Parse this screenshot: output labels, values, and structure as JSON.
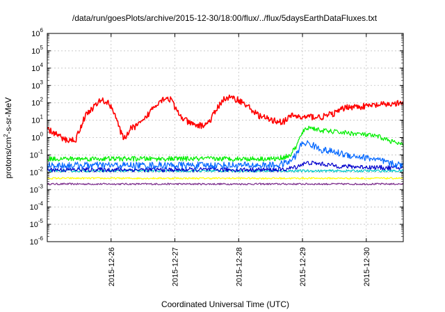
{
  "chart_data": {
    "type": "line",
    "title": "/data/run/goesPlots/archive/2015-12-30/18:00/flux/../flux/5daysEarthDataFluxes.txt",
    "xlabel": "Coordinated Universal Time (UTC)",
    "ylabel": "protons/cm²-s-sr-MeV",
    "yscale": "log",
    "ylim": [
      1e-06,
      1000000.0
    ],
    "xlim": [
      0,
      5.58
    ],
    "x_unit_note": "days relative to 2015-12-25 00:00 UTC",
    "yticks": [
      {
        "exp": -6,
        "label": "10^-6"
      },
      {
        "exp": -5,
        "label": "10^-5"
      },
      {
        "exp": -4,
        "label": "10^-4"
      },
      {
        "exp": -3,
        "label": "10^-3"
      },
      {
        "exp": -2,
        "label": "10^-2"
      },
      {
        "exp": -1,
        "label": "10^-1"
      },
      {
        "exp": 0,
        "label": "10^0"
      },
      {
        "exp": 1,
        "label": "10^1"
      },
      {
        "exp": 2,
        "label": "10^2"
      },
      {
        "exp": 3,
        "label": "10^3"
      },
      {
        "exp": 4,
        "label": "10^4"
      },
      {
        "exp": 5,
        "label": "10^5"
      },
      {
        "exp": 6,
        "label": "10^6"
      }
    ],
    "xticks": [
      {
        "x": 1,
        "label": "2015-12-26"
      },
      {
        "x": 2,
        "label": "2015-12-27"
      },
      {
        "x": 3,
        "label": "2015-12-28"
      },
      {
        "x": 4,
        "label": "2015-12-29"
      },
      {
        "x": 5,
        "label": "2015-12-30"
      }
    ],
    "grid": true,
    "series": [
      {
        "color": "#ff0000",
        "noise": 0.18,
        "x": [
          0,
          0.15,
          0.25,
          0.35,
          0.45,
          0.5,
          0.6,
          0.75,
          0.85,
          0.95,
          1.0,
          1.05,
          1.1,
          1.15,
          1.2,
          1.3,
          1.5,
          1.65,
          1.75,
          1.85,
          1.95,
          2.0,
          2.1,
          2.2,
          2.3,
          2.45,
          2.55,
          2.65,
          2.75,
          2.85,
          3.0,
          3.15,
          3.3,
          3.5,
          3.7,
          3.85,
          3.95,
          4.0,
          4.1,
          4.3,
          4.5,
          4.7,
          4.9,
          5.1,
          5.3,
          5.58
        ],
        "y": [
          3,
          1.5,
          0.8,
          0.7,
          0.8,
          2.5,
          20,
          70,
          150,
          100,
          60,
          30,
          8,
          2,
          0.8,
          3,
          8,
          50,
          120,
          200,
          150,
          50,
          15,
          8,
          5,
          5,
          9,
          40,
          150,
          200,
          150,
          60,
          20,
          10,
          8,
          20,
          15,
          14,
          16,
          15,
          25,
          60,
          60,
          70,
          80,
          95
        ]
      },
      {
        "color": "#00ee00",
        "noise": 0.14,
        "x": [
          0,
          3.6,
          3.8,
          3.9,
          4.0,
          4.1,
          4.3,
          4.6,
          4.9,
          5.2,
          5.4,
          5.58
        ],
        "y": [
          0.06,
          0.06,
          0.09,
          0.3,
          2.0,
          4.0,
          2.5,
          2.0,
          1.6,
          1.1,
          0.6,
          0.35
        ]
      },
      {
        "color": "#0066ff",
        "noise": 0.2,
        "x": [
          0,
          3.6,
          3.8,
          3.9,
          4.0,
          4.1,
          4.3,
          4.7,
          5.1,
          5.4,
          5.58
        ],
        "y": [
          0.025,
          0.025,
          0.04,
          0.1,
          0.5,
          0.45,
          0.2,
          0.1,
          0.06,
          0.03,
          0.025
        ]
      },
      {
        "color": "#0000cc",
        "noise": 0.13,
        "x": [
          0,
          3.7,
          3.9,
          4.0,
          4.1,
          4.3,
          4.6,
          5.0,
          5.3,
          5.58
        ],
        "y": [
          0.014,
          0.014,
          0.02,
          0.03,
          0.035,
          0.03,
          0.022,
          0.02,
          0.018,
          0.018
        ]
      },
      {
        "color": "#00c8c8",
        "noise": 0.07,
        "x": [
          0,
          5.58
        ],
        "y": [
          0.012,
          0.012
        ]
      },
      {
        "color": "#ffff00",
        "noise": 0.05,
        "x": [
          0,
          5.58
        ],
        "y": [
          0.0045,
          0.0045
        ]
      },
      {
        "color": "#7a2a8a",
        "noise": 0.05,
        "x": [
          0,
          5.58
        ],
        "y": [
          0.0021,
          0.0021
        ]
      }
    ]
  }
}
